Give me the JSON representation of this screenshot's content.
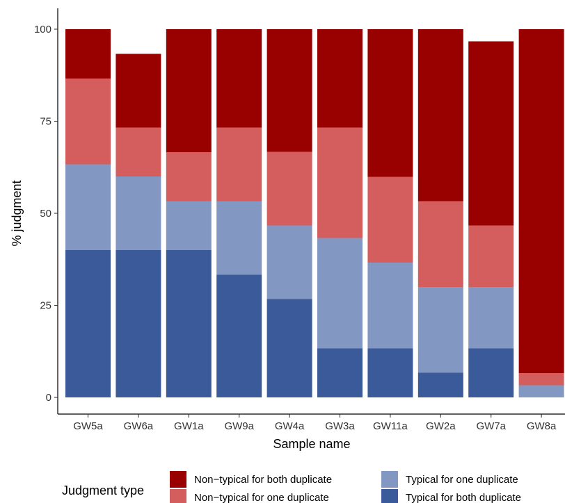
{
  "chart_data": {
    "type": "bar",
    "stacked": true,
    "categories": [
      "GW5a",
      "GW6a",
      "GW1a",
      "GW9a",
      "GW4a",
      "GW3a",
      "GW11a",
      "GW2a",
      "GW7a",
      "GW8a"
    ],
    "series": [
      {
        "name": "Typical for both duplicate",
        "color": "#3B5A9A",
        "values": [
          40,
          40,
          40,
          33.3,
          26.7,
          13.3,
          13.3,
          6.7,
          13.3,
          0
        ]
      },
      {
        "name": "Typical for one duplicate",
        "color": "#8297C2",
        "values": [
          23.3,
          20,
          13.3,
          20,
          20,
          30,
          23.3,
          23.3,
          16.7,
          3.3
        ]
      },
      {
        "name": "Non−typical for one duplicate",
        "color": "#D45E5E",
        "values": [
          23.3,
          13.3,
          13.3,
          20,
          20,
          30,
          23.3,
          23.3,
          16.7,
          3.3
        ]
      },
      {
        "name": "Non−typical for both duplicate",
        "color": "#990000",
        "values": [
          13.4,
          20,
          33.4,
          26.7,
          33.3,
          26.7,
          40.1,
          46.7,
          50,
          93.4
        ]
      }
    ],
    "xlabel": "Sample name",
    "ylabel": "% judgment",
    "ylim": [
      0,
      100
    ],
    "yticks": [
      0,
      25,
      50,
      75,
      100
    ],
    "grid": false,
    "legend": {
      "title": "Judgment type",
      "placement": "bottom",
      "order": [
        3,
        2,
        1,
        0
      ]
    }
  }
}
